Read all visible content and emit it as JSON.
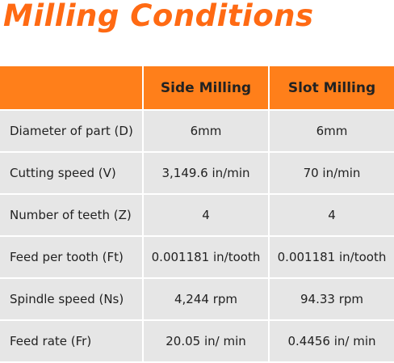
{
  "title": "Milling Conditions",
  "table": {
    "header": [
      "Side Milling",
      "Slot Milling"
    ],
    "rows": [
      [
        "Diameter of part (D)",
        "6mm",
        "6mm"
      ],
      [
        "Cutting speed (V)",
        "3,149.6 in/min",
        "70 in/min"
      ],
      [
        "Number of teeth (Z)",
        "4",
        "4"
      ],
      [
        "Feed per tooth (Ft)",
        "0.001181 in/tooth",
        "0.001181 in/tooth"
      ],
      [
        "Spindle speed (Ns)",
        "4,244 rpm",
        "94.33 rpm"
      ],
      [
        "Feed rate (Fr)",
        "20.05 in/ min",
        "0.4456 in/ min"
      ]
    ]
  }
}
